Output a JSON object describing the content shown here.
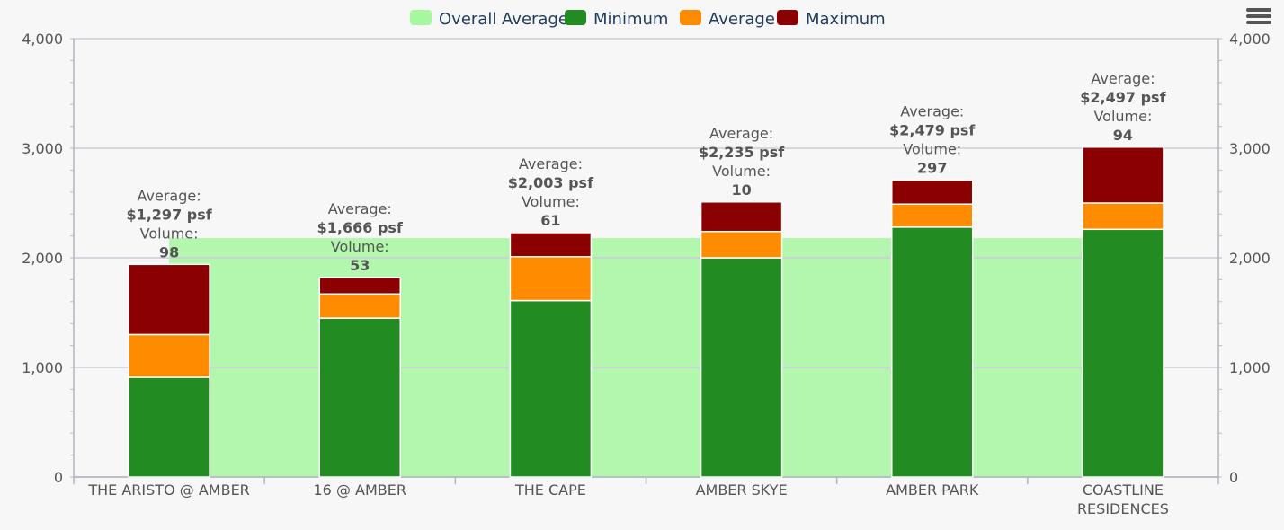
{
  "chart_data": {
    "type": "bar",
    "stacked": true,
    "categories": [
      [
        "THE ARISTO @ AMBER"
      ],
      [
        "16 @ AMBER"
      ],
      [
        "THE CAPE"
      ],
      [
        "AMBER SKYE"
      ],
      [
        "AMBER PARK"
      ],
      [
        "COASTLINE",
        "RESIDENCES"
      ]
    ],
    "ylim": [
      0,
      4000
    ],
    "yticks": [
      "0",
      "1,000",
      "2,000",
      "3,000",
      "4,000"
    ],
    "ytick_values": [
      0,
      1000,
      2000,
      3000,
      4000
    ],
    "grid": true,
    "legend_position": "top-center",
    "series": [
      {
        "name": "Overall Average",
        "type": "area",
        "color": "#a6f7a0",
        "value": 2180
      },
      {
        "name": "Minimum",
        "type": "bar",
        "color": "#228b22",
        "values": [
          910,
          1450,
          1610,
          2000,
          2280,
          2260
        ]
      },
      {
        "name": "Average",
        "type": "bar",
        "color": "#ff8c00",
        "values": [
          390,
          220,
          400,
          240,
          210,
          240
        ]
      },
      {
        "name": "Maximum",
        "type": "bar",
        "color": "#8b0000",
        "values": [
          640,
          150,
          220,
          270,
          220,
          510
        ]
      }
    ],
    "annotations": [
      {
        "line1": "Average:",
        "line2": "$1,297 psf",
        "line3": "Volume:",
        "line4": "98"
      },
      {
        "line1": "Average:",
        "line2": "$1,666 psf",
        "line3": "Volume:",
        "line4": "53"
      },
      {
        "line1": "Average:",
        "line2": "$2,003 psf",
        "line3": "Volume:",
        "line4": "61"
      },
      {
        "line1": "Average:",
        "line2": "$2,235 psf",
        "line3": "Volume:",
        "line4": "10"
      },
      {
        "line1": "Average:",
        "line2": "$2,479 psf",
        "line3": "Volume:",
        "line4": "297"
      },
      {
        "line1": "Average:",
        "line2": "$2,497 psf",
        "line3": "Volume:",
        "line4": "94"
      }
    ]
  },
  "menu_icon": "hamburger-menu-icon"
}
